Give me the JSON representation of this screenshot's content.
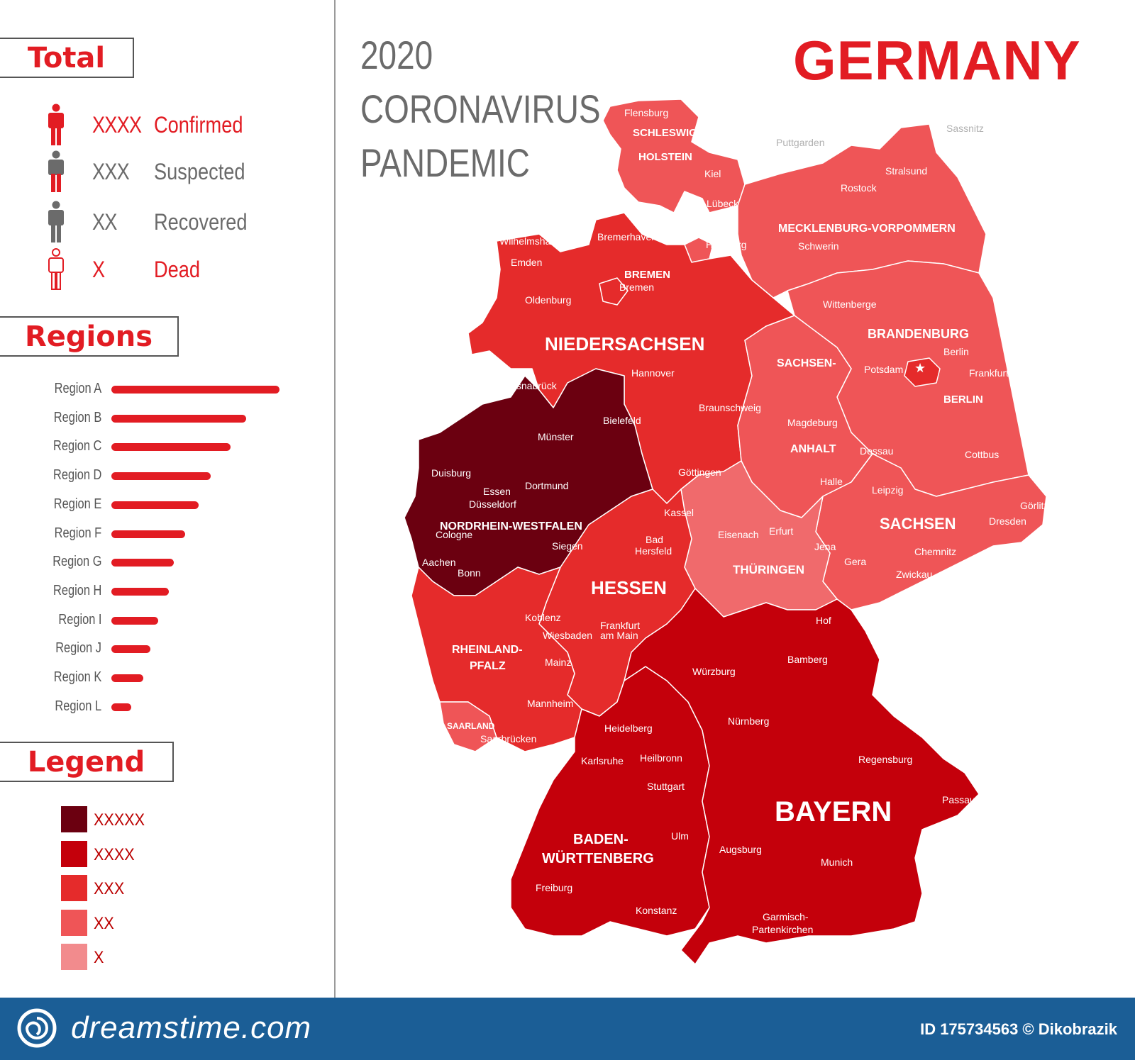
{
  "sections": {
    "total": "Total",
    "regions": "Regions",
    "legend": "Legend"
  },
  "totals": [
    {
      "count": "XXXX",
      "label": "Confirmed",
      "color": "#e21c23",
      "icon": "person-red-icon"
    },
    {
      "count": "XXX",
      "label": "Suspected",
      "color": "#6b6b6b",
      "icon": "person-grey-red-legs-icon"
    },
    {
      "count": "XX",
      "label": "Recovered",
      "color": "#6b6b6b",
      "icon": "person-grey-icon"
    },
    {
      "count": "X",
      "label": "Dead",
      "color": "#e21c23",
      "icon": "person-outline-red-icon"
    }
  ],
  "regions_chart": {
    "type": "bar",
    "categories": [
      "Region A",
      "Region B",
      "Region C",
      "Region D",
      "Region E",
      "Region F",
      "Region G",
      "Region H",
      "Region I",
      "Region J",
      "Region K",
      "Region L"
    ],
    "values": [
      100,
      80,
      71,
      59,
      52,
      44,
      37,
      34,
      28,
      23,
      19,
      12
    ]
  },
  "legend": [
    {
      "label": "XXXXX",
      "color": "#6b0010"
    },
    {
      "label": "XXXX",
      "color": "#c4000b"
    },
    {
      "label": "XXX",
      "color": "#e52b2b"
    },
    {
      "label": "XX",
      "color": "#ef5557"
    },
    {
      "label": "X",
      "color": "#f28b8d"
    }
  ],
  "title": {
    "year": "2020",
    "line1": "CORONAVIRUS",
    "line2": "PANDEMIC",
    "country": "GERMANY"
  },
  "states": [
    {
      "name": "SCHLESWIG-",
      "name2": "HOLSTEIN",
      "color": "#ef5557"
    },
    {
      "name": "HAMBURG",
      "color": "#ef5557"
    },
    {
      "name": "MECKLENBURG-VORPOMMERN",
      "color": "#ef5557"
    },
    {
      "name": "BREMEN",
      "color": "#e52b2b"
    },
    {
      "name": "NIEDERSACHSEN",
      "color": "#e52b2b"
    },
    {
      "name": "BRANDENBURG",
      "color": "#ef5557"
    },
    {
      "name": "BERLIN",
      "color": "#e52b2b"
    },
    {
      "name": "SACHSEN-",
      "name2": "ANHALT",
      "color": "#ef5557"
    },
    {
      "name": "NORDRHEIN-WESTFALEN",
      "color": "#6b0010"
    },
    {
      "name": "SACHSEN",
      "color": "#ef5557"
    },
    {
      "name": "THÜRINGEN",
      "color": "#f06a6c"
    },
    {
      "name": "HESSEN",
      "color": "#e52b2b"
    },
    {
      "name": "RHEINLAND-",
      "name2": "PFALZ",
      "color": "#e52b2b"
    },
    {
      "name": "SAARLAND",
      "color": "#ef5557"
    },
    {
      "name": "BAYERN",
      "color": "#c4000b"
    },
    {
      "name": "BADEN-",
      "name2": "WÜRTTENBERG",
      "color": "#c4000b"
    }
  ],
  "cities": [
    "Flensburg",
    "Kiel",
    "Puttgarden",
    "Sassnitz",
    "Stralsund",
    "Rostock",
    "Lübeck",
    "Hamburg",
    "Schwerin",
    "Bremerhaven",
    "Wilhelmshaven",
    "Emden",
    "Bremen",
    "Oldenburg",
    "Wittenberge",
    "Berlin",
    "Potsdam",
    "Frankfurt",
    "Osnabrück",
    "Hannover",
    "Braunschweig",
    "Bielefeld",
    "Magdeburg",
    "Münster",
    "Dessau",
    "Cottbus",
    "Duisburg",
    "Dortmund",
    "Essen",
    "Düsseldorf",
    "Göttingen",
    "Halle",
    "Leipzig",
    "Görlitz",
    "Kassel",
    "Dresden",
    "Cologne",
    "Siegen",
    "Eisenach",
    "Erfurt",
    "Jena",
    "Aachen",
    "Bonn",
    "Bad",
    "Hersfeld",
    "Gera",
    "Chemnitz",
    "Zwickau",
    "Koblenz",
    "Hof",
    "Frankfurt",
    "am Main",
    "Wiesbaden",
    "Mainz",
    "Würzburg",
    "Bamberg",
    "Mannheim",
    "Nürnberg",
    "Saarbrücken",
    "Heidelberg",
    "Heilbronn",
    "Regensburg",
    "Karlsruhe",
    "Stuttgart",
    "Passau",
    "Ulm",
    "Augsburg",
    "Munich",
    "Freiburg",
    "Konstanz",
    "Garmisch-",
    "Partenkirchen"
  ],
  "footer": {
    "brand": "dreamstime.com",
    "id": "ID 175734563 © Dikobrazik"
  }
}
